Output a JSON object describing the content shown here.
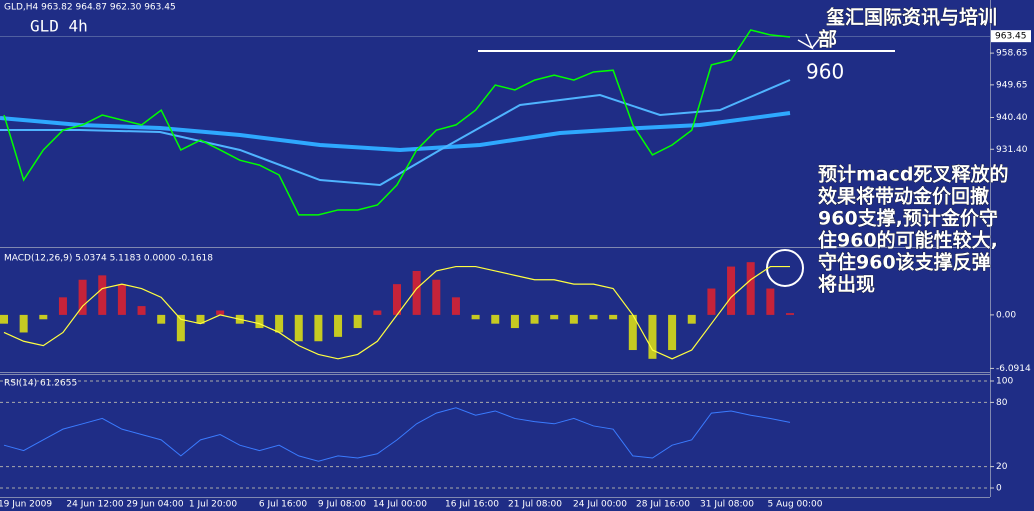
{
  "header": {
    "info": "GLD,H4  963.82 964.87 962.30 963.45",
    "label": "GLD 4h"
  },
  "brand_lines": [
    "玺汇国际资讯与培训",
    "部"
  ],
  "level_label": "960",
  "comment_lines": [
    "预计macd死叉释放的",
    "效果将带动金价回撤",
    "960支撑,预计金价守",
    "住960的可能性较大,",
    "守住960该支撑反弹",
    "将出现"
  ],
  "price_panel": {
    "ylim": [
      903.7,
      973.7
    ],
    "yticks": [
      958.65,
      949.65,
      {
        "value": 940.4,
        "label": "940.40"
      },
      {
        "value": 931.4,
        "label": "931.40"
      }
    ],
    "last_price": 963.45,
    "color": "#00ff00",
    "values": [
      941.1,
      922.7,
      931.2,
      936.8,
      938.3,
      941.1,
      939.7,
      938.3,
      942.5,
      931.2,
      934.0,
      931.2,
      928.3,
      926.9,
      924.1,
      912.8,
      912.8,
      914.2,
      914.2,
      915.6,
      921.3,
      931.2,
      936.8,
      938.3,
      942.5,
      949.6,
      948.2,
      951.0,
      952.4,
      951.0,
      953.3,
      953.8,
      938.3,
      929.8,
      932.6,
      936.8,
      955.3,
      956.7,
      965.2,
      963.8,
      963.2
    ]
  },
  "macd_panel": {
    "title": "MACD(12,26,9) 5.0374 5.1183 0.0000 -0.1618",
    "ylim": [
      -6.5,
      7.5
    ],
    "yticks": [
      {
        "value": 0,
        "label": "0.00"
      },
      -6.0914
    ],
    "up_color": "#ff2020",
    "down_color": "#ffff00",
    "signal_color": "#ffff40",
    "histogram": [
      -1,
      -2,
      -0.5,
      2,
      4,
      4.5,
      3.5,
      1,
      -1,
      -3,
      -1,
      0.5,
      -1,
      -1.5,
      -2,
      -3,
      -3,
      -2.5,
      -1.5,
      0.5,
      3.5,
      5,
      4,
      2,
      -0.5,
      -1,
      -1.5,
      -1,
      -0.5,
      -1,
      -0.5,
      -0.5,
      -4,
      -5,
      -4,
      -1,
      3,
      5.5,
      6,
      3,
      0.2
    ],
    "signal": [
      -2,
      -3,
      -3.5,
      -2,
      1,
      3,
      3.5,
      3,
      2,
      -0.5,
      -1,
      0,
      -0.5,
      -1,
      -2,
      -3.5,
      -4.5,
      -5,
      -4.5,
      -3,
      0,
      3,
      5,
      5.5,
      5.5,
      5,
      4.5,
      4,
      4,
      3.5,
      3.5,
      3,
      0,
      -4,
      -5,
      -4,
      -1,
      2,
      4,
      5.5,
      5.5
    ]
  },
  "rsi_panel": {
    "title": "RSI(14) 61.2655",
    "ylim": [
      0,
      100
    ],
    "yticks": [
      100,
      80,
      20,
      0
    ],
    "color": "#3a7bff",
    "values": [
      40,
      35,
      45,
      55,
      60,
      65,
      55,
      50,
      45,
      30,
      45,
      50,
      40,
      35,
      40,
      30,
      25,
      30,
      28,
      32,
      45,
      60,
      70,
      75,
      68,
      72,
      65,
      62,
      60,
      65,
      58,
      55,
      30,
      28,
      40,
      45,
      70,
      72,
      68,
      65,
      61.3
    ]
  },
  "time_axis": [
    "19 Jun 2009",
    "24 Jun 12:00",
    "29 Jun 04:00",
    "1 Jul 20:00",
    "6 Jul 16:00",
    "9 Jul 08:00",
    "14 Jul 00:00",
    "16 Jul 16:00",
    "21 Jul 08:00",
    "24 Jul 00:00",
    "28 Jul 16:00",
    "31 Jul 08:00",
    "5 Aug 00:00"
  ]
}
